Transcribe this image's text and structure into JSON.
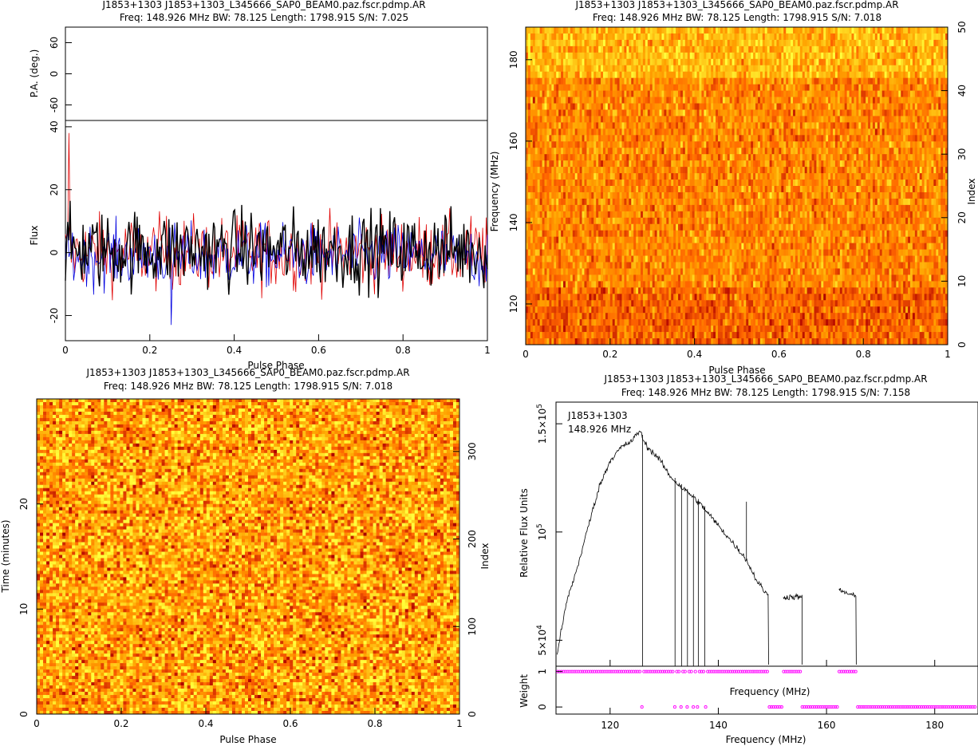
{
  "chart_data": [
    {
      "type": "line",
      "title": "J1853+1303 J1853+1303_L345666_SAP0_BEAM0.paz.fscr.pdmp.AR",
      "subtitle": "Freq: 148.926 MHz BW: 78.125 Length: 1798.915 S/N: 7.025",
      "xlabel": "Pulse Phase",
      "xlim": [
        0,
        1
      ],
      "xticks": [
        "0",
        "0.2",
        "0.4",
        "0.6",
        "0.8",
        "1"
      ],
      "upper_panel": {
        "ylabel": "P.A. (deg.)",
        "ylim": [
          -90,
          90
        ],
        "yticks": [
          "-60",
          "0",
          "60"
        ]
      },
      "lower_panel": {
        "ylabel": "Flux",
        "ylim": [
          -28,
          42
        ],
        "yticks": [
          "-20",
          "0",
          "20",
          "40"
        ]
      },
      "series": [
        {
          "color": "#e00000",
          "values": []
        },
        {
          "color": "#0000e0",
          "values": []
        },
        {
          "color": "#000000",
          "values": []
        }
      ],
      "series_summary": "noise-like profiles over 1024 phase bins, roughly between -22 and +38"
    },
    {
      "type": "heatmap",
      "title": "J1853+1303 J1853+1303_L345666_SAP0_BEAM0.paz.fscr.pdmp.AR",
      "subtitle": "Freq: 148.926 MHz BW: 78.125 Length: 1798.915 S/N: 7.018",
      "xlabel": "Pulse Phase",
      "ylabel": "Frequency (MHz)",
      "ylabel_right": "Index",
      "xlim": [
        0,
        1
      ],
      "ylim": [
        110,
        188
      ],
      "xticks": [
        "0",
        "0.2",
        "0.4",
        "0.6",
        "0.8",
        "1"
      ],
      "yticks": [
        "120",
        "140",
        "160",
        "180"
      ],
      "yticks_right": [
        "0",
        "10",
        "20",
        "30",
        "40",
        "50"
      ],
      "colormap": "heat (dark red to yellow)"
    },
    {
      "type": "heatmap",
      "title": "J1853+1303 J1853+1303_L345666_SAP0_BEAM0.paz.fscr.pdmp.AR",
      "subtitle": "Freq: 148.926 MHz BW: 78.125 Length: 1798.915 S/N: 7.018",
      "xlabel": "Pulse Phase",
      "ylabel": "Time (minutes)",
      "ylabel_right": "Index",
      "xlim": [
        0,
        1
      ],
      "ylim": [
        0,
        30
      ],
      "xticks": [
        "0",
        "0.2",
        "0.4",
        "0.6",
        "0.8",
        "1"
      ],
      "yticks": [
        "0",
        "10",
        "20"
      ],
      "yticks_right": [
        "0",
        "100",
        "200",
        "300"
      ],
      "colormap": "heat (dark red to yellow)"
    },
    {
      "type": "line",
      "title": "J1853+1303 J1853+1303_L345666_SAP0_BEAM0.paz.fscr.pdmp.AR",
      "subtitle": "Freq: 148.926 MHz BW: 78.125 Length: 1798.915 S/N: 7.158",
      "xlabel": "Frequency (MHz)",
      "ylabel": "Relative Flux Units",
      "xlim": [
        110,
        188
      ],
      "ylim": [
        38000,
        160000
      ],
      "xticks": [
        "120",
        "140",
        "160",
        "180"
      ],
      "yticks": [
        {
          "value": 50000,
          "base": "5×10",
          "exp": "4"
        },
        {
          "value": 100000,
          "base": "10",
          "exp": "5"
        },
        {
          "value": 150000,
          "base": "1.5×10",
          "exp": "5"
        }
      ],
      "legend_lines": [
        "J1853+1303",
        "148.926 MHz"
      ],
      "x": [
        110.2,
        112,
        114,
        116,
        118,
        120,
        122,
        124,
        125.5,
        126.2,
        127,
        129,
        131,
        133,
        135,
        137,
        139,
        141,
        143,
        145,
        147,
        149,
        152,
        155.5,
        162.5,
        165.5
      ],
      "y": [
        44000,
        68000,
        84000,
        103000,
        121000,
        133000,
        139000,
        142000,
        147000,
        142000,
        139000,
        134000,
        126000,
        121000,
        117000,
        112000,
        106000,
        100000,
        94000,
        88000,
        78000,
        71000,
        70000,
        70000,
        73000,
        70000
      ],
      "weight_panel": {
        "ylabel": "Weight",
        "inner_label": "Frequency (MHz)",
        "yticks": [
          "0",
          "1"
        ],
        "ylim": [
          -0.2,
          1.15
        ],
        "marker_color": "#ff00ff"
      }
    }
  ]
}
